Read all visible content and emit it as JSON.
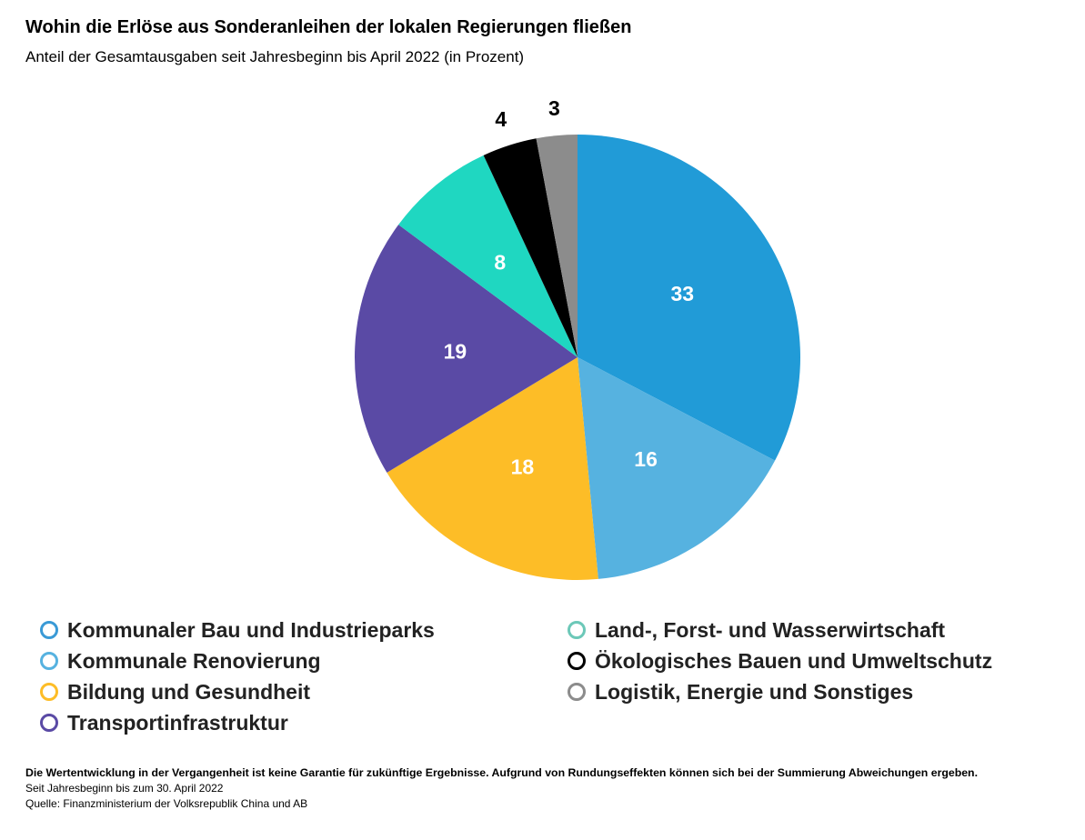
{
  "title": "Wohin die Erlöse aus Sonderanleihen der lokalen Regierungen fließen",
  "subtitle": "Anteil der Gesamtausgaben seit Jahresbeginn bis April 2022 (in Prozent)",
  "chart_data": {
    "type": "pie",
    "title": "Wohin die Erlöse aus Sonderanleihen der lokalen Regierungen fließen",
    "categories": [
      "Kommunaler Bau und Industrieparks",
      "Kommunale Renovierung",
      "Bildung und Gesundheit",
      "Transportinfrastruktur",
      "Land-, Forst- und Wasserwirtschaft",
      "Ökologisches Bauen und Umweltschutz",
      "Logistik, Energie und Sonstiges"
    ],
    "values": [
      33,
      16,
      18,
      19,
      8,
      4,
      3
    ],
    "colors": [
      "#219bd7",
      "#56b2e0",
      "#fdbd27",
      "#5a4aa5",
      "#1fd7c1",
      "#000000",
      "#8c8c8c"
    ],
    "legend_colors": [
      "#3a9ad6",
      "#56b2e0",
      "#fdbd27",
      "#5a4aa5",
      "#6cc8b8",
      "#000000",
      "#8c8c8c"
    ],
    "legend_position": "bottom"
  },
  "footer": {
    "disclaimer": "Die Wertentwicklung in der Vergangenheit ist keine Garantie für zukünftige Ergebnisse. Aufgrund von Rundungseffekten können sich bei der Summierung Abweichungen ergeben.",
    "note": "Seit Jahresbeginn bis zum 30. April 2022",
    "source": "Quelle: Finanzministerium der Volksrepublik China und AB"
  }
}
